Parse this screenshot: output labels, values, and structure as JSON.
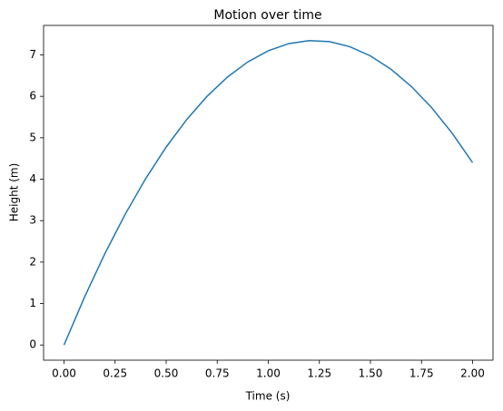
{
  "chart_data": {
    "type": "line",
    "title": "Motion over time",
    "x_label": "Time (s)",
    "y_label": "Height (m)",
    "x": [
      0,
      0.1,
      0.2,
      0.3,
      0.4,
      0.5,
      0.6,
      0.7,
      0.8,
      0.9,
      1.0,
      1.1,
      1.2,
      1.3,
      1.4,
      1.5,
      1.6,
      1.7,
      1.8,
      1.9,
      2.0
    ],
    "series": [
      {
        "name": "Height",
        "color": "#1f77b4",
        "values": [
          0,
          1.151,
          2.204,
          3.159,
          4.016,
          4.775,
          5.436,
          5.999,
          6.464,
          6.831,
          7.1,
          7.271,
          7.344,
          7.319,
          7.196,
          6.975,
          6.656,
          6.239,
          5.724,
          5.111,
          4.4
        ]
      }
    ],
    "xlim": [
      -0.1,
      2.1
    ],
    "ylim": [
      -0.367,
      7.711
    ],
    "xticks": [
      {
        "value": 0,
        "label": "0.00"
      },
      {
        "value": 0.25,
        "label": "0.25"
      },
      {
        "value": 0.5,
        "label": "0.50"
      },
      {
        "value": 0.75,
        "label": "0.75"
      },
      {
        "value": 1,
        "label": "1.00"
      },
      {
        "value": 1.25,
        "label": "1.25"
      },
      {
        "value": 1.5,
        "label": "1.50"
      },
      {
        "value": 1.75,
        "label": "1.75"
      },
      {
        "value": 2,
        "label": "2.00"
      }
    ],
    "yticks": [
      0,
      1,
      2,
      3,
      4,
      5,
      6,
      7
    ]
  }
}
